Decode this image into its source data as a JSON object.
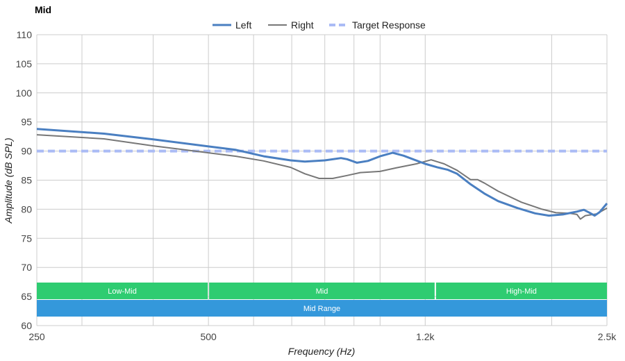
{
  "chart_data": {
    "type": "line",
    "title": "Mid",
    "xlabel": "Frequency (Hz)",
    "ylabel": "Amplitude (dB SPL)",
    "xscale": "log",
    "xlim": [
      250,
      2500
    ],
    "ylim": [
      60,
      110
    ],
    "yticks": [
      60,
      65,
      70,
      75,
      80,
      85,
      90,
      95,
      100,
      105,
      110
    ],
    "xticks": [
      {
        "v": 250,
        "label": "250"
      },
      {
        "v": 500,
        "label": "500"
      },
      {
        "v": 1200,
        "label": "1.2k"
      },
      {
        "v": 2500,
        "label": "2.5k"
      }
    ],
    "xgrid": [
      250,
      300,
      400,
      500,
      600,
      700,
      800,
      900,
      1000,
      1200,
      2000,
      2500
    ],
    "grid": true,
    "legend_position": "top-center",
    "series": [
      {
        "name": "Left",
        "color": "#4a7fc1",
        "style": "solid",
        "x": [
          250,
          328,
          400,
          500,
          559,
          625,
          697,
          738,
          800,
          854,
          875,
          911,
          952,
          1000,
          1052,
          1100,
          1200,
          1261,
          1313,
          1365,
          1441,
          1524,
          1611,
          1742,
          1870,
          1978,
          2093,
          2215,
          2278,
          2330,
          2378,
          2427,
          2500
        ],
        "y": [
          93.8,
          93.0,
          92.0,
          90.8,
          90.2,
          89.1,
          88.4,
          88.2,
          88.4,
          88.8,
          88.6,
          88.0,
          88.3,
          89.1,
          89.7,
          89.2,
          87.8,
          87.2,
          86.8,
          86.1,
          84.3,
          82.7,
          81.4,
          80.2,
          79.3,
          78.9,
          79.1,
          79.6,
          79.9,
          79.4,
          78.9,
          79.5,
          81.0
        ]
      },
      {
        "name": "Right",
        "color": "#777777",
        "style": "solid",
        "x": [
          250,
          328,
          400,
          500,
          559,
          625,
          697,
          738,
          782,
          826,
          875,
          923,
          1000,
          1066,
          1158,
          1229,
          1295,
          1365,
          1441,
          1482,
          1524,
          1611,
          1770,
          1924,
          2035,
          2153,
          2215,
          2246,
          2291,
          2399,
          2500
        ],
        "y": [
          92.8,
          92.1,
          90.9,
          89.7,
          89.1,
          88.3,
          87.2,
          86.1,
          85.3,
          85.3,
          85.8,
          86.3,
          86.5,
          87.1,
          87.8,
          88.5,
          87.8,
          86.7,
          85.1,
          85.1,
          84.5,
          83.1,
          81.2,
          80.0,
          79.4,
          79.3,
          79.1,
          78.3,
          78.9,
          79.2,
          80.2
        ]
      },
      {
        "name": "Target Response",
        "color": "#aabbf5",
        "style": "dashed",
        "x": [
          250,
          2500
        ],
        "y": [
          90,
          90
        ]
      }
    ],
    "bands": [
      {
        "label": "Low-Mid",
        "from": 250,
        "to": 500,
        "color": "#2ecc71",
        "row": 0
      },
      {
        "label": "Mid",
        "from": 500,
        "to": 1250,
        "color": "#2ecc71",
        "row": 0
      },
      {
        "label": "High-Mid",
        "from": 1250,
        "to": 2500,
        "color": "#2ecc71",
        "row": 0
      },
      {
        "label": "Mid Range",
        "from": 250,
        "to": 2500,
        "color": "#3498db",
        "row": 1
      }
    ]
  }
}
